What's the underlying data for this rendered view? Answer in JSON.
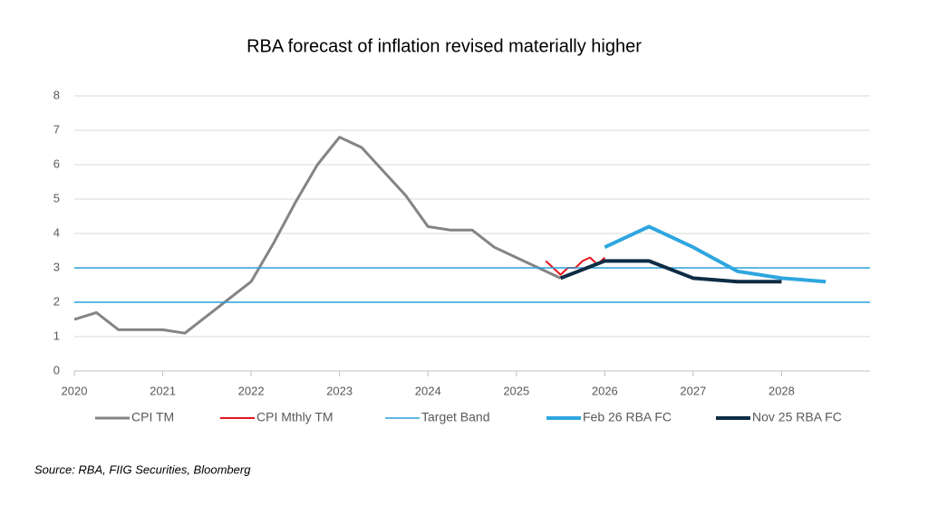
{
  "chart_data": {
    "type": "line",
    "title": "RBA forecast of inflation revised materially higher",
    "source": "Source:  RBA, FIIG Securities, Bloomberg",
    "xlim": [
      2020,
      2029
    ],
    "xticks": [
      2020,
      2021,
      2022,
      2023,
      2024,
      2025,
      2026,
      2027,
      2028
    ],
    "ylim": [
      0,
      8
    ],
    "yticks": [
      0,
      1,
      2,
      3,
      4,
      5,
      6,
      7,
      8
    ],
    "grid": true,
    "series": [
      {
        "name": "CPI TM",
        "color": "#848484",
        "width": 3,
        "x": [
          2020,
          2020.25,
          2020.5,
          2020.75,
          2021,
          2021.25,
          2021.5,
          2021.75,
          2022,
          2022.25,
          2022.5,
          2022.75,
          2023,
          2023.25,
          2023.5,
          2023.75,
          2024,
          2024.25,
          2024.5,
          2024.75,
          2025,
          2025.25,
          2025.5
        ],
        "values": [
          1.5,
          1.7,
          1.2,
          1.2,
          1.2,
          1.1,
          1.6,
          2.1,
          2.6,
          3.7,
          4.9,
          6.0,
          6.8,
          6.5,
          5.8,
          5.1,
          4.2,
          4.1,
          4.1,
          3.6,
          3.3,
          3.0,
          2.7
        ]
      },
      {
        "name": "CPI Mthly TM",
        "color": "#e8141c",
        "width": 2,
        "x": [
          2025.333,
          2025.417,
          2025.5,
          2025.583,
          2025.667,
          2025.75,
          2025.833,
          2025.917,
          2026
        ],
        "values": [
          3.2,
          3.0,
          2.8,
          3.0,
          3.0,
          3.2,
          3.3,
          3.1,
          3.3
        ]
      },
      {
        "name": "Target Band",
        "color": "#2aa0d8",
        "width": 1.5,
        "style": "hline",
        "values": [
          2,
          3
        ]
      },
      {
        "name": "Feb 26 RBA FC",
        "color": "#2ea6df",
        "width": 4,
        "x": [
          2026,
          2026.5,
          2027,
          2027.5,
          2028,
          2028.5
        ],
        "values": [
          3.6,
          4.2,
          3.6,
          2.9,
          2.7,
          2.6
        ]
      },
      {
        "name": "Nov 25 RBA FC",
        "color": "#0e2d45",
        "width": 4,
        "x": [
          2025.5,
          2026,
          2026.5,
          2027,
          2027.5,
          2028
        ],
        "values": [
          2.7,
          3.2,
          3.2,
          2.7,
          2.6,
          2.6
        ]
      }
    ]
  }
}
